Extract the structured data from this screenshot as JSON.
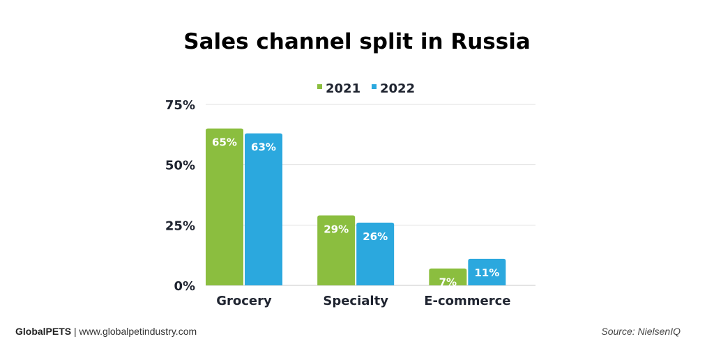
{
  "chart_data": {
    "type": "bar",
    "title": "Sales channel split in Russia",
    "categories": [
      "Grocery",
      "Specialty",
      "E-commerce"
    ],
    "series": [
      {
        "name": "2021",
        "values": [
          65,
          29,
          7
        ],
        "labels": [
          "65%",
          "29%",
          "7%"
        ],
        "color": "#8BBE3F"
      },
      {
        "name": "2022",
        "values": [
          63,
          26,
          11
        ],
        "labels": [
          "63%",
          "26%",
          "11%"
        ],
        "color": "#2BA8DE"
      }
    ],
    "ylim": [
      0,
      75
    ],
    "yticks": [
      0,
      25,
      50,
      75
    ],
    "ytick_labels": [
      "0%",
      "25%",
      "50%",
      "75%"
    ],
    "grid": true,
    "legend": "top-center",
    "xlabel": "",
    "ylabel": ""
  },
  "footer": {
    "brand": "GlobalPETS",
    "separator": "|",
    "website": "www.globalpetindustry.com",
    "source": "Source: NielsenIQ"
  }
}
